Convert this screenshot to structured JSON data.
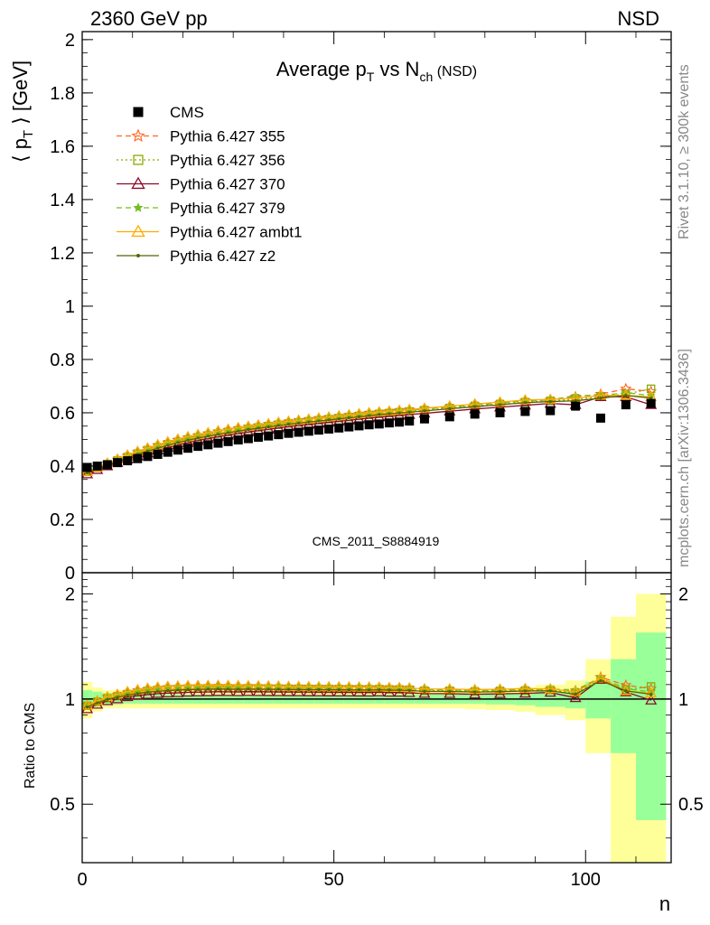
{
  "header": {
    "left": "2360 GeV pp",
    "right": "NSD"
  },
  "side_labels": {
    "rivet": "Rivet 3.1.10, ≥ 300k events",
    "mcplots": "mcplots.cern.ch [arXiv:1306.3436]"
  },
  "watermark": "CMS_2011_S8884919",
  "chart_data": {
    "type": "line",
    "title": {
      "main": "Average p",
      "sub_t": "T",
      "mid": " vs N",
      "sub_ch": "ch",
      "tail": " (NSD)"
    },
    "xlabel": "n",
    "ylabel": "⟨ p_T ⟩ [GeV]",
    "ratio_ylabel": "Ratio to CMS",
    "xlim": [
      0,
      117
    ],
    "ylim": [
      0,
      2.03
    ],
    "ratio_ylim": [
      0.34,
      2.3
    ],
    "x_ticks": [
      "0",
      "50",
      "100"
    ],
    "y_ticks": [
      "0",
      "0.2",
      "0.4",
      "0.6",
      "0.8",
      "1",
      "1.2",
      "1.4",
      "1.6",
      "1.8",
      "2"
    ],
    "ratio_ticks": [
      "0.5",
      "1",
      "2"
    ],
    "legend_placement": "top-left",
    "legend": [
      {
        "label": "CMS",
        "color": "#000000",
        "marker": "filled-square",
        "dash": "none"
      },
      {
        "label": "Pythia 6.427 355",
        "color": "#ff6622",
        "marker": "star",
        "dash": "dashed"
      },
      {
        "label": "Pythia 6.427 356",
        "color": "#88aa00",
        "marker": "open-square",
        "dash": "dotted"
      },
      {
        "label": "Pythia 6.427 370",
        "color": "#8b0a2a",
        "marker": "open-triangle",
        "dash": "solid"
      },
      {
        "label": "Pythia 6.427 379",
        "color": "#77bb22",
        "marker": "small-star",
        "dash": "dashed"
      },
      {
        "label": "Pythia 6.427 ambt1",
        "color": "#ffaa00",
        "marker": "open-triangle",
        "dash": "solid"
      },
      {
        "label": "Pythia 6.427 z2",
        "color": "#556600",
        "marker": "dot",
        "dash": "solid"
      }
    ],
    "cms": {
      "x": [
        1,
        3,
        5,
        7,
        9,
        11,
        13,
        15,
        17,
        19,
        21,
        23,
        25,
        27,
        29,
        31,
        33,
        35,
        37,
        39,
        41,
        43,
        45,
        47,
        49,
        51,
        53,
        55,
        57,
        59,
        61,
        63,
        65,
        68,
        73,
        78,
        83,
        88,
        93,
        98,
        103,
        108,
        113
      ],
      "y": [
        0.395,
        0.4,
        0.405,
        0.413,
        0.42,
        0.428,
        0.436,
        0.444,
        0.452,
        0.46,
        0.467,
        0.474,
        0.48,
        0.486,
        0.492,
        0.498,
        0.503,
        0.508,
        0.513,
        0.518,
        0.523,
        0.527,
        0.531,
        0.535,
        0.539,
        0.543,
        0.547,
        0.551,
        0.555,
        0.558,
        0.562,
        0.565,
        0.569,
        0.577,
        0.585,
        0.595,
        0.6,
        0.605,
        0.608,
        0.625,
        0.58,
        0.63,
        0.635
      ]
    },
    "mc_x": [
      1,
      3,
      5,
      7,
      9,
      11,
      13,
      15,
      17,
      19,
      21,
      23,
      25,
      27,
      29,
      31,
      33,
      35,
      37,
      39,
      41,
      43,
      45,
      47,
      49,
      51,
      53,
      55,
      57,
      59,
      61,
      63,
      65,
      68,
      73,
      78,
      83,
      88,
      93,
      98,
      103,
      108,
      113
    ],
    "series": [
      {
        "name": "Pythia 6.427 355",
        "y": [
          0.38,
          0.395,
          0.41,
          0.424,
          0.438,
          0.452,
          0.465,
          0.477,
          0.488,
          0.498,
          0.507,
          0.515,
          0.522,
          0.529,
          0.535,
          0.541,
          0.547,
          0.552,
          0.557,
          0.562,
          0.566,
          0.571,
          0.575,
          0.579,
          0.583,
          0.587,
          0.591,
          0.595,
          0.599,
          0.602,
          0.605,
          0.608,
          0.611,
          0.615,
          0.622,
          0.63,
          0.637,
          0.645,
          0.648,
          0.66,
          0.67,
          0.69,
          0.68
        ]
      },
      {
        "name": "Pythia 6.427 356",
        "y": [
          0.378,
          0.393,
          0.407,
          0.421,
          0.434,
          0.447,
          0.46,
          0.471,
          0.482,
          0.491,
          0.5,
          0.508,
          0.515,
          0.522,
          0.528,
          0.534,
          0.54,
          0.545,
          0.55,
          0.555,
          0.56,
          0.564,
          0.568,
          0.572,
          0.576,
          0.58,
          0.584,
          0.588,
          0.592,
          0.596,
          0.599,
          0.602,
          0.605,
          0.61,
          0.618,
          0.626,
          0.633,
          0.64,
          0.645,
          0.65,
          0.66,
          0.67,
          0.69
        ]
      },
      {
        "name": "Pythia 6.427 370",
        "y": [
          0.37,
          0.386,
          0.4,
          0.413,
          0.426,
          0.438,
          0.449,
          0.46,
          0.47,
          0.479,
          0.488,
          0.496,
          0.503,
          0.51,
          0.516,
          0.522,
          0.528,
          0.533,
          0.538,
          0.543,
          0.548,
          0.552,
          0.556,
          0.56,
          0.564,
          0.568,
          0.572,
          0.576,
          0.58,
          0.584,
          0.587,
          0.59,
          0.593,
          0.598,
          0.606,
          0.614,
          0.621,
          0.628,
          0.635,
          0.63,
          0.66,
          0.66,
          0.63
        ]
      },
      {
        "name": "Pythia 6.427 379",
        "y": [
          0.378,
          0.393,
          0.408,
          0.422,
          0.436,
          0.45,
          0.463,
          0.475,
          0.486,
          0.496,
          0.505,
          0.513,
          0.52,
          0.527,
          0.533,
          0.539,
          0.545,
          0.55,
          0.555,
          0.56,
          0.564,
          0.569,
          0.573,
          0.577,
          0.581,
          0.585,
          0.589,
          0.593,
          0.597,
          0.6,
          0.603,
          0.606,
          0.609,
          0.614,
          0.621,
          0.629,
          0.636,
          0.644,
          0.648,
          0.665,
          0.665,
          0.675,
          0.665
        ]
      },
      {
        "name": "Pythia 6.427 ambt1",
        "y": [
          0.379,
          0.395,
          0.411,
          0.426,
          0.441,
          0.455,
          0.468,
          0.48,
          0.491,
          0.501,
          0.51,
          0.518,
          0.525,
          0.532,
          0.538,
          0.544,
          0.549,
          0.554,
          0.559,
          0.564,
          0.568,
          0.572,
          0.576,
          0.58,
          0.584,
          0.588,
          0.592,
          0.596,
          0.6,
          0.603,
          0.606,
          0.609,
          0.612,
          0.617,
          0.625,
          0.633,
          0.64,
          0.648,
          0.65,
          0.655,
          0.665,
          0.665,
          0.66
        ]
      },
      {
        "name": "Pythia 6.427 z2",
        "y": [
          0.375,
          0.39,
          0.404,
          0.418,
          0.431,
          0.444,
          0.456,
          0.467,
          0.478,
          0.488,
          0.497,
          0.505,
          0.512,
          0.519,
          0.525,
          0.531,
          0.537,
          0.542,
          0.547,
          0.552,
          0.557,
          0.561,
          0.565,
          0.569,
          0.573,
          0.577,
          0.581,
          0.585,
          0.589,
          0.593,
          0.596,
          0.599,
          0.602,
          0.607,
          0.615,
          0.623,
          0.63,
          0.638,
          0.642,
          0.645,
          0.655,
          0.665,
          0.655
        ]
      }
    ],
    "bands": {
      "x_edges": [
        0,
        2,
        4,
        6,
        8,
        10,
        12,
        14,
        16,
        18,
        20,
        22,
        24,
        26,
        28,
        30,
        32,
        34,
        36,
        38,
        40,
        42,
        44,
        46,
        48,
        50,
        52,
        54,
        56,
        58,
        60,
        62,
        64,
        66,
        70,
        76,
        80,
        86,
        90,
        96,
        100,
        105,
        110,
        116
      ],
      "green_half": [
        0.06,
        0.05,
        0.04,
        0.035,
        0.03,
        0.03,
        0.03,
        0.03,
        0.03,
        0.03,
        0.03,
        0.03,
        0.03,
        0.03,
        0.03,
        0.03,
        0.03,
        0.03,
        0.03,
        0.03,
        0.03,
        0.03,
        0.03,
        0.03,
        0.03,
        0.03,
        0.03,
        0.03,
        0.03,
        0.03,
        0.03,
        0.03,
        0.03,
        0.03,
        0.03,
        0.03,
        0.035,
        0.04,
        0.05,
        0.06,
        0.12,
        0.3,
        0.55
      ],
      "yellow_half": [
        0.12,
        0.08,
        0.06,
        0.06,
        0.06,
        0.06,
        0.06,
        0.06,
        0.06,
        0.06,
        0.06,
        0.06,
        0.06,
        0.06,
        0.06,
        0.06,
        0.06,
        0.06,
        0.06,
        0.06,
        0.06,
        0.06,
        0.06,
        0.06,
        0.06,
        0.06,
        0.06,
        0.06,
        0.06,
        0.06,
        0.06,
        0.06,
        0.06,
        0.06,
        0.06,
        0.065,
        0.07,
        0.08,
        0.1,
        0.13,
        0.3,
        0.72,
        1.0
      ]
    }
  }
}
